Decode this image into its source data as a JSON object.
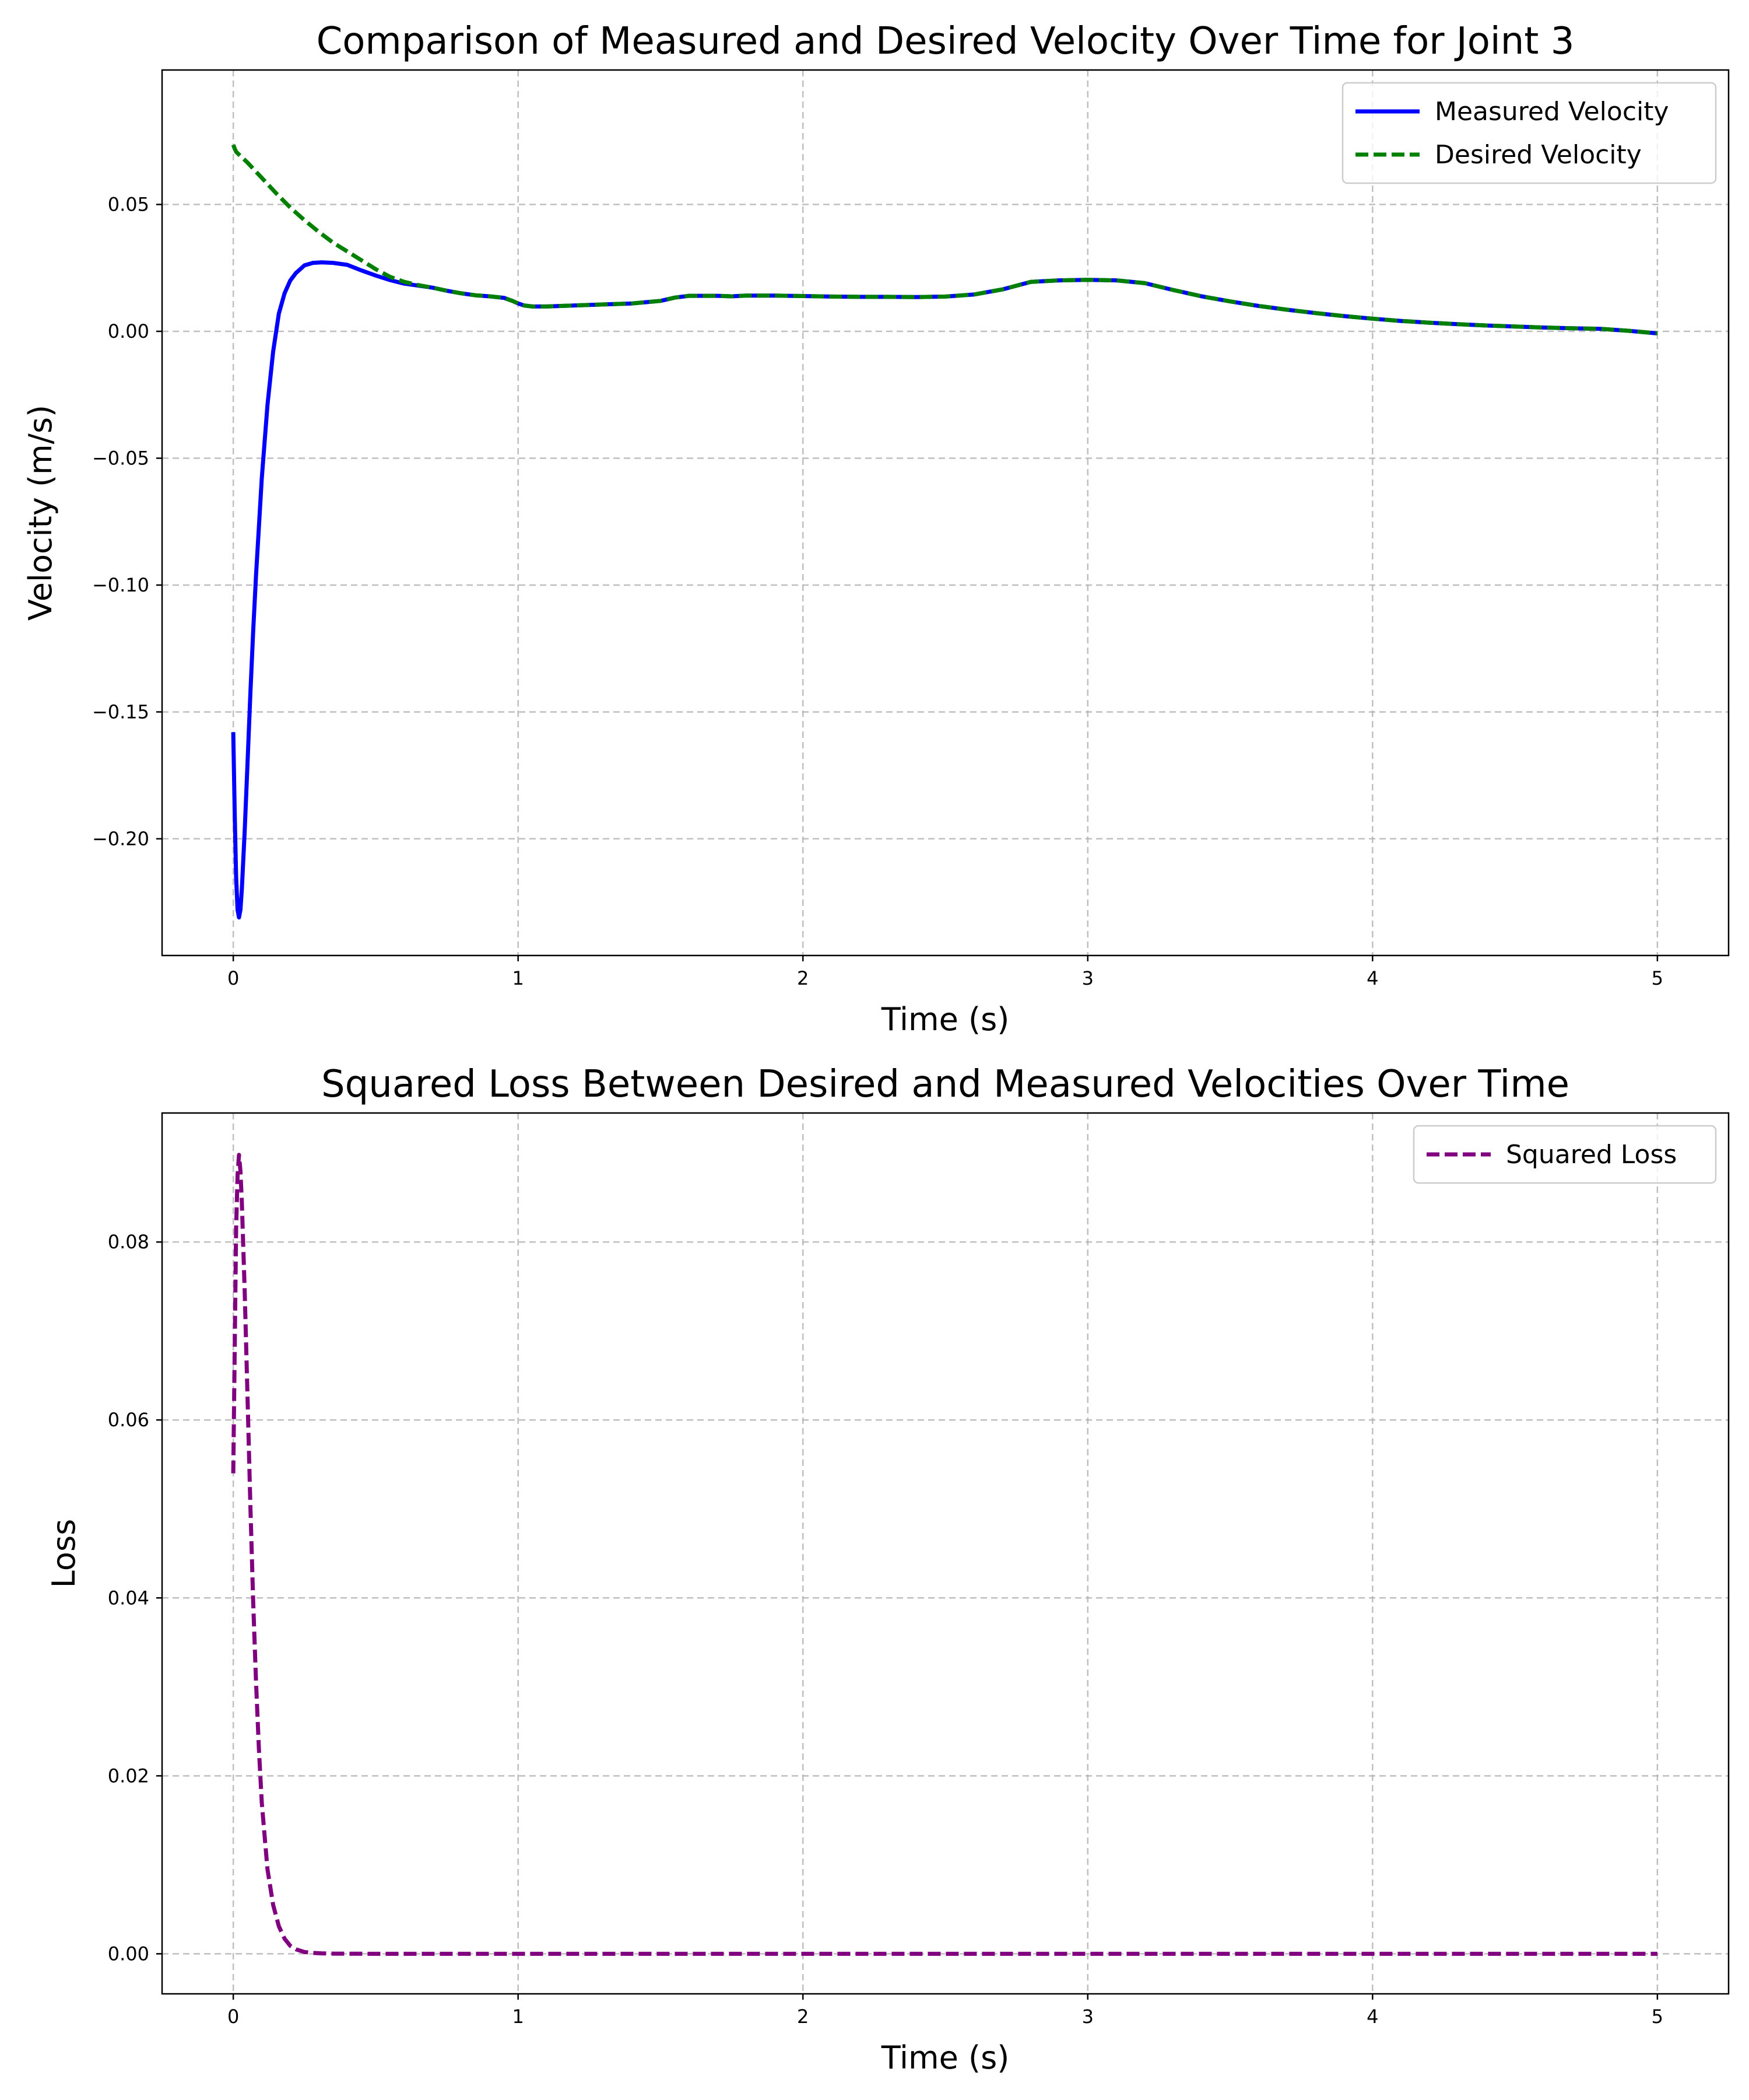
{
  "chart_data": [
    {
      "type": "line",
      "title": "Comparison of Measured and Desired Velocity Over Time for Joint 3",
      "xlabel": "Time (s)",
      "ylabel": "Velocity (m/s)",
      "xlim": [
        -0.25,
        5.25
      ],
      "ylim": [
        -0.246,
        0.103
      ],
      "xticks": [
        0,
        1,
        2,
        3,
        4,
        5
      ],
      "xtick_labels": [
        "0",
        "1",
        "2",
        "3",
        "4",
        "5"
      ],
      "yticks": [
        -0.2,
        -0.15,
        -0.1,
        -0.05,
        0.0,
        0.05
      ],
      "ytick_labels": [
        "−0.20",
        "−0.15",
        "−0.10",
        "−0.05",
        "0.00",
        "0.05"
      ],
      "grid": true,
      "legend": "top-right",
      "series": [
        {
          "name": "Measured Velocity",
          "color": "#0000ff",
          "style": "solid",
          "x": [
            0.0,
            0.005,
            0.01,
            0.015,
            0.02,
            0.025,
            0.03,
            0.04,
            0.05,
            0.06,
            0.07,
            0.08,
            0.1,
            0.12,
            0.14,
            0.16,
            0.18,
            0.2,
            0.22,
            0.25,
            0.28,
            0.31,
            0.35,
            0.4,
            0.45,
            0.5,
            0.55,
            0.6,
            0.65,
            0.7,
            0.75,
            0.8,
            0.85,
            0.9,
            0.95,
            0.98,
            1.0,
            1.02,
            1.05,
            1.1,
            1.2,
            1.3,
            1.4,
            1.45,
            1.5,
            1.55,
            1.6,
            1.7,
            1.75,
            1.8,
            1.9,
            2.0,
            2.1,
            2.2,
            2.3,
            2.4,
            2.5,
            2.6,
            2.7,
            2.75,
            2.8,
            2.9,
            3.0,
            3.1,
            3.2,
            3.3,
            3.4,
            3.5,
            3.6,
            3.7,
            3.8,
            3.9,
            4.0,
            4.1,
            4.2,
            4.3,
            4.4,
            4.5,
            4.6,
            4.7,
            4.8,
            4.9,
            5.0
          ],
          "y": [
            -0.158,
            -0.19,
            -0.215,
            -0.228,
            -0.231,
            -0.228,
            -0.22,
            -0.197,
            -0.17,
            -0.143,
            -0.118,
            -0.096,
            -0.058,
            -0.029,
            -0.008,
            0.007,
            0.015,
            0.02,
            0.023,
            0.026,
            0.027,
            0.0272,
            0.027,
            0.0262,
            0.024,
            0.022,
            0.0202,
            0.0188,
            0.018,
            0.0172,
            0.016,
            0.015,
            0.0142,
            0.0138,
            0.0132,
            0.012,
            0.011,
            0.0102,
            0.0098,
            0.0098,
            0.0102,
            0.0106,
            0.011,
            0.0115,
            0.012,
            0.0133,
            0.014,
            0.014,
            0.0138,
            0.0141,
            0.0141,
            0.0139,
            0.0137,
            0.0136,
            0.0136,
            0.0135,
            0.0137,
            0.0145,
            0.0165,
            0.018,
            0.0195,
            0.0201,
            0.0203,
            0.0201,
            0.019,
            0.0163,
            0.0138,
            0.0118,
            0.01,
            0.0085,
            0.0072,
            0.006,
            0.005,
            0.0041,
            0.0034,
            0.0028,
            0.0023,
            0.0019,
            0.0015,
            0.0012,
            0.001,
            0.0002,
            -0.0008
          ]
        },
        {
          "name": "Desired Velocity",
          "color": "#008000",
          "style": "dashed",
          "x": [
            0.0,
            0.005,
            0.01,
            0.015,
            0.05,
            0.1,
            0.15,
            0.2,
            0.25,
            0.3,
            0.35,
            0.4,
            0.45,
            0.5,
            0.55,
            0.6,
            0.65,
            0.7,
            0.75,
            0.8,
            0.85,
            0.9,
            0.95,
            0.98,
            1.0,
            1.02,
            1.05,
            1.1,
            1.2,
            1.3,
            1.4,
            1.45,
            1.5,
            1.55,
            1.6,
            1.7,
            1.75,
            1.8,
            1.9,
            2.0,
            2.1,
            2.2,
            2.3,
            2.4,
            2.5,
            2.6,
            2.7,
            2.75,
            2.8,
            2.9,
            3.0,
            3.1,
            3.2,
            3.3,
            3.4,
            3.5,
            3.6,
            3.7,
            3.8,
            3.9,
            4.0,
            4.1,
            4.2,
            4.3,
            4.4,
            4.5,
            4.6,
            4.7,
            4.8,
            4.9,
            5.0
          ],
          "y": [
            0.0735,
            0.072,
            0.0708,
            0.0702,
            0.0665,
            0.0605,
            0.0545,
            0.0488,
            0.0438,
            0.0392,
            0.035,
            0.0315,
            0.028,
            0.0245,
            0.0215,
            0.0195,
            0.0182,
            0.0172,
            0.016,
            0.015,
            0.0142,
            0.0138,
            0.0132,
            0.012,
            0.011,
            0.0102,
            0.0098,
            0.0098,
            0.0102,
            0.0106,
            0.011,
            0.0115,
            0.012,
            0.0133,
            0.014,
            0.014,
            0.0138,
            0.0141,
            0.0141,
            0.0139,
            0.0137,
            0.0136,
            0.0136,
            0.0135,
            0.0137,
            0.0145,
            0.0165,
            0.018,
            0.0195,
            0.0201,
            0.0203,
            0.0201,
            0.019,
            0.0163,
            0.0138,
            0.0118,
            0.01,
            0.0085,
            0.0072,
            0.006,
            0.005,
            0.0041,
            0.0034,
            0.0028,
            0.0023,
            0.0019,
            0.0015,
            0.0012,
            0.001,
            0.0002,
            -0.0008
          ]
        }
      ]
    },
    {
      "type": "line",
      "title": "Squared Loss Between Desired and Measured Velocities Over Time",
      "xlabel": "Time (s)",
      "ylabel": "Loss",
      "xlim": [
        -0.25,
        5.25
      ],
      "ylim": [
        -0.0045,
        0.0945
      ],
      "xticks": [
        0,
        1,
        2,
        3,
        4,
        5
      ],
      "xtick_labels": [
        "0",
        "1",
        "2",
        "3",
        "4",
        "5"
      ],
      "yticks": [
        0.0,
        0.02,
        0.04,
        0.06,
        0.08
      ],
      "ytick_labels": [
        "0.00",
        "0.02",
        "0.04",
        "0.06",
        "0.08"
      ],
      "grid": true,
      "legend": "top-right",
      "series": [
        {
          "name": "Squared Loss",
          "color": "#800080",
          "style": "dashed",
          "x": [
            0.0,
            0.005,
            0.01,
            0.015,
            0.02,
            0.025,
            0.03,
            0.04,
            0.05,
            0.06,
            0.07,
            0.08,
            0.09,
            0.1,
            0.12,
            0.14,
            0.16,
            0.18,
            0.2,
            0.22,
            0.25,
            0.28,
            0.31,
            0.35,
            0.4,
            0.5,
            0.6,
            0.8,
            1.0,
            2.0,
            3.0,
            4.0,
            5.0
          ],
          "y": [
            0.054,
            0.068,
            0.0815,
            0.0875,
            0.0898,
            0.088,
            0.0845,
            0.0745,
            0.0625,
            0.0505,
            0.0395,
            0.0305,
            0.023,
            0.017,
            0.0095,
            0.0055,
            0.0031,
            0.0017,
            0.0009,
            0.0005,
            0.0002,
            0.0001,
            5e-05,
            2e-05,
            1e-05,
            0.0,
            0.0,
            0.0,
            0.0,
            0.0,
            0.0,
            0.0,
            0.0
          ]
        }
      ]
    }
  ]
}
